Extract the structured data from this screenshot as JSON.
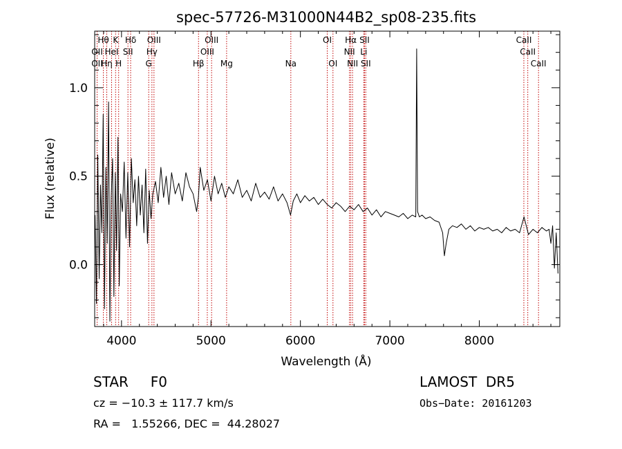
{
  "chart_data": {
    "type": "line",
    "title": "spec-57726-M31000N44B2_sp08-235.fits",
    "xlabel": "Wavelength (Å)",
    "ylabel": "Flux (relative)",
    "xlim": [
      3700,
      8900
    ],
    "ylim": [
      -0.35,
      1.32
    ],
    "xticks": [
      4000,
      5000,
      6000,
      7000,
      8000
    ],
    "yticks": [
      0.0,
      0.5,
      1.0
    ],
    "ytick_labels": [
      "0.0",
      "0.5",
      "1.0"
    ],
    "grid": false,
    "series": [
      {
        "color": "#000000",
        "x": [
          3705,
          3720,
          3735,
          3750,
          3765,
          3780,
          3795,
          3810,
          3825,
          3840,
          3855,
          3870,
          3885,
          3900,
          3915,
          3930,
          3945,
          3960,
          3975,
          3990,
          4010,
          4030,
          4050,
          4070,
          4090,
          4110,
          4130,
          4150,
          4170,
          4190,
          4210,
          4230,
          4250,
          4270,
          4290,
          4310,
          4330,
          4350,
          4380,
          4410,
          4440,
          4470,
          4500,
          4530,
          4560,
          4600,
          4640,
          4680,
          4720,
          4760,
          4800,
          4840,
          4860,
          4880,
          4920,
          4960,
          5000,
          5040,
          5080,
          5120,
          5160,
          5200,
          5250,
          5300,
          5350,
          5400,
          5450,
          5500,
          5550,
          5600,
          5650,
          5700,
          5750,
          5800,
          5850,
          5890,
          5920,
          5960,
          6000,
          6050,
          6100,
          6150,
          6200,
          6250,
          6300,
          6350,
          6400,
          6450,
          6500,
          6550,
          6600,
          6650,
          6700,
          6750,
          6800,
          6850,
          6900,
          6950,
          7000,
          7050,
          7100,
          7150,
          7200,
          7250,
          7290,
          7300,
          7310,
          7330,
          7360,
          7400,
          7450,
          7500,
          7550,
          7590,
          7610,
          7630,
          7660,
          7700,
          7750,
          7800,
          7850,
          7900,
          7950,
          8000,
          8050,
          8100,
          8150,
          8200,
          8250,
          8300,
          8350,
          8400,
          8450,
          8500,
          8550,
          8600,
          8650,
          8700,
          8750,
          8780,
          8800,
          8820,
          8840,
          8860,
          8880
        ],
        "y": [
          0.28,
          -0.22,
          0.62,
          -0.08,
          0.45,
          0.18,
          0.85,
          -0.25,
          0.55,
          0.12,
          0.92,
          -0.32,
          0.38,
          0.6,
          -0.18,
          0.52,
          0.08,
          0.72,
          -0.12,
          0.4,
          0.3,
          0.58,
          0.15,
          0.52,
          0.1,
          0.6,
          0.35,
          0.48,
          0.22,
          0.5,
          0.28,
          0.45,
          0.18,
          0.54,
          0.12,
          0.42,
          0.26,
          0.4,
          0.47,
          0.35,
          0.55,
          0.38,
          0.5,
          0.34,
          0.52,
          0.4,
          0.46,
          0.36,
          0.52,
          0.44,
          0.4,
          0.3,
          0.38,
          0.55,
          0.42,
          0.48,
          0.36,
          0.5,
          0.4,
          0.46,
          0.38,
          0.44,
          0.4,
          0.48,
          0.38,
          0.42,
          0.36,
          0.46,
          0.38,
          0.41,
          0.37,
          0.44,
          0.36,
          0.4,
          0.35,
          0.28,
          0.36,
          0.4,
          0.35,
          0.39,
          0.36,
          0.38,
          0.34,
          0.37,
          0.34,
          0.32,
          0.35,
          0.33,
          0.3,
          0.33,
          0.31,
          0.34,
          0.3,
          0.32,
          0.28,
          0.31,
          0.27,
          0.3,
          0.29,
          0.28,
          0.27,
          0.29,
          0.26,
          0.28,
          0.27,
          1.22,
          0.3,
          0.27,
          0.28,
          0.26,
          0.27,
          0.25,
          0.24,
          0.18,
          0.05,
          0.12,
          0.2,
          0.22,
          0.21,
          0.23,
          0.2,
          0.22,
          0.19,
          0.21,
          0.2,
          0.21,
          0.19,
          0.2,
          0.18,
          0.21,
          0.19,
          0.2,
          0.18,
          0.27,
          0.17,
          0.2,
          0.18,
          0.21,
          0.19,
          0.2,
          0.12,
          0.22,
          -0.02,
          0.18,
          -0.05
        ]
      }
    ],
    "line_labels": [
      {
        "text": "Hθ",
        "x": 3797,
        "row": 1
      },
      {
        "text": "K",
        "x": 3934,
        "row": 1
      },
      {
        "text": "Hδ",
        "x": 4102,
        "row": 1
      },
      {
        "text": "OIII",
        "x": 4363,
        "row": 1
      },
      {
        "text": "OIII",
        "x": 5007,
        "row": 1
      },
      {
        "text": "OI",
        "x": 6300,
        "row": 1
      },
      {
        "text": "Hα",
        "x": 6563,
        "row": 1
      },
      {
        "text": "SII",
        "x": 6717,
        "row": 1
      },
      {
        "text": "CaII",
        "x": 8498,
        "row": 1
      },
      {
        "text": "OII",
        "x": 3727,
        "row": 2
      },
      {
        "text": "HeI",
        "x": 3889,
        "row": 2
      },
      {
        "text": "SII",
        "x": 4072,
        "row": 2
      },
      {
        "text": "Hγ",
        "x": 4340,
        "row": 2
      },
      {
        "text": "OIII",
        "x": 4959,
        "row": 2
      },
      {
        "text": "NII",
        "x": 6548,
        "row": 2
      },
      {
        "text": "Li",
        "x": 6708,
        "row": 2
      },
      {
        "text": "CaII",
        "x": 8542,
        "row": 2
      },
      {
        "text": "OII",
        "x": 3727,
        "row": 3
      },
      {
        "text": "Hη",
        "x": 3835,
        "row": 3
      },
      {
        "text": "H",
        "x": 3968,
        "row": 3
      },
      {
        "text": "G",
        "x": 4304,
        "row": 3
      },
      {
        "text": "Hβ",
        "x": 4861,
        "row": 3
      },
      {
        "text": "Mg",
        "x": 5175,
        "row": 3
      },
      {
        "text": "Na",
        "x": 5893,
        "row": 3
      },
      {
        "text": "OI",
        "x": 6364,
        "row": 3
      },
      {
        "text": "NII",
        "x": 6583,
        "row": 3
      },
      {
        "text": "SII",
        "x": 6731,
        "row": 3
      },
      {
        "text": "CaII",
        "x": 8662,
        "row": 3
      }
    ],
    "line_color": "#c00000"
  },
  "info": {
    "class_line": "STAR     F0",
    "survey": "LAMOST  DR5",
    "cz_line": "cz = −10.3 ± 117.7 km/s",
    "obs_date": "Obs−Date: 20161203",
    "radec_line": "RA =   1.55266, DEC =  44.28027"
  }
}
